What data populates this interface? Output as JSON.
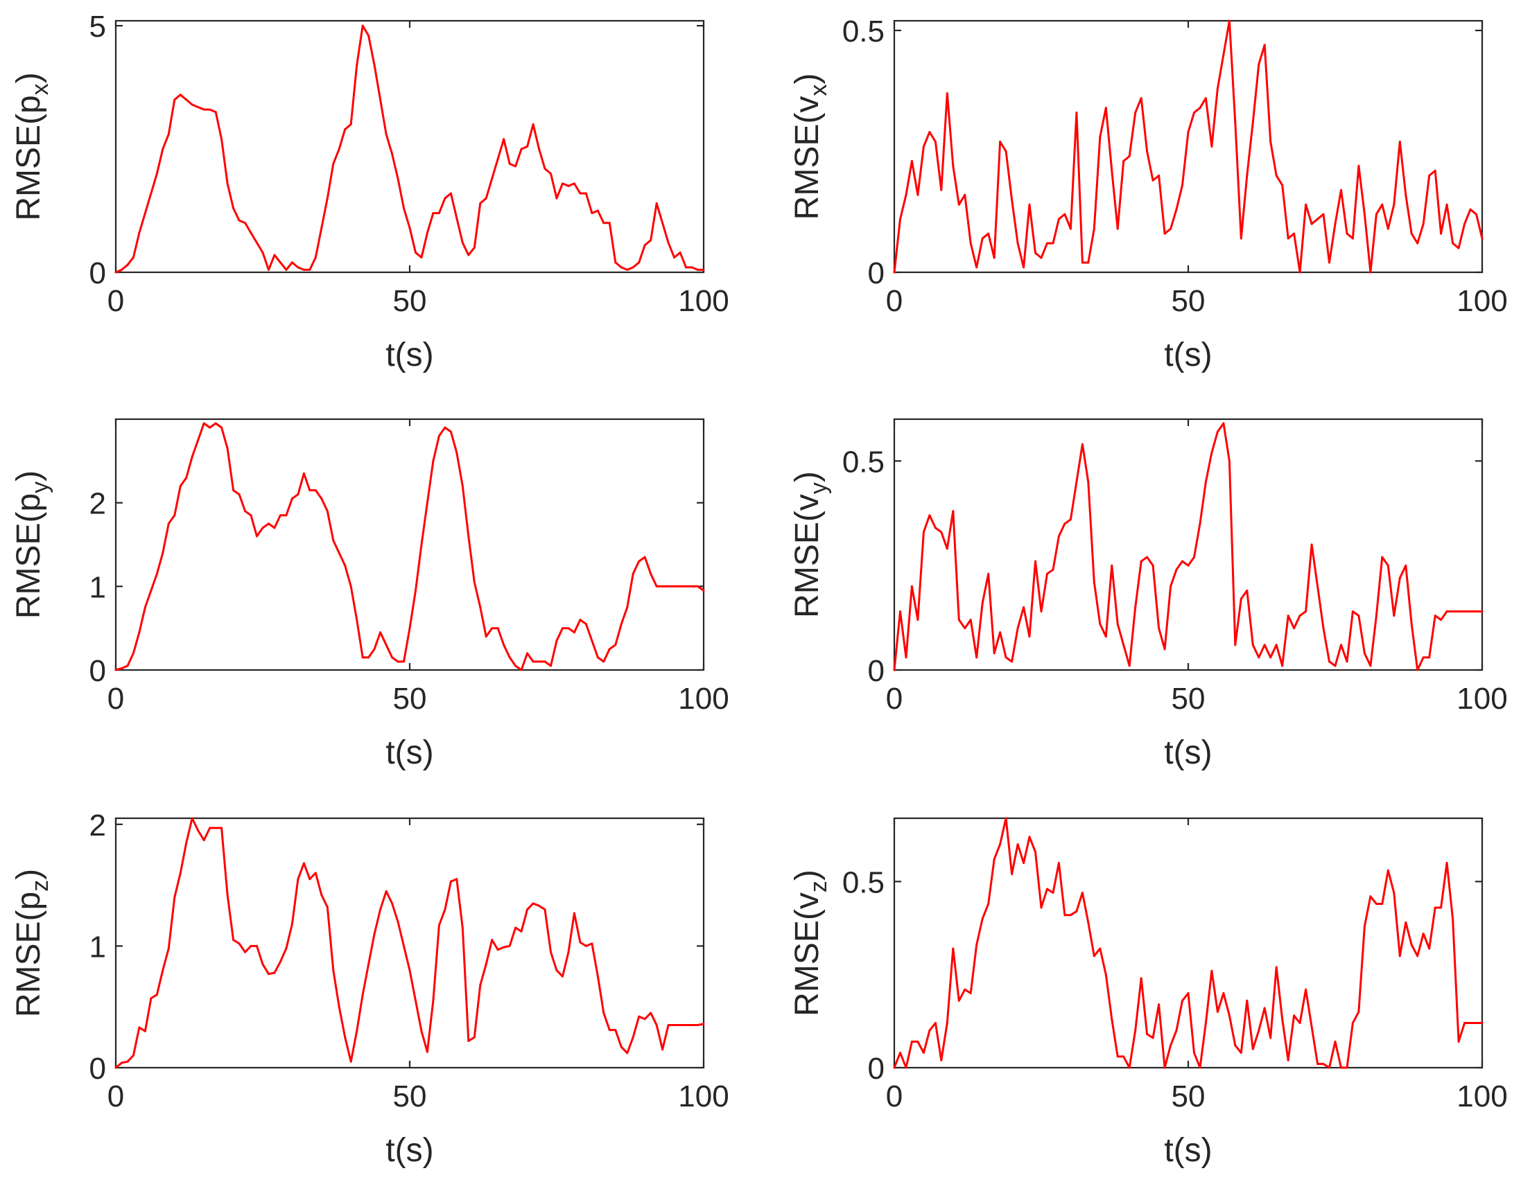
{
  "colors": {
    "line": "#ff0000",
    "axis": "#262626"
  },
  "chart_data": [
    {
      "type": "line",
      "ylabel_main": "RMSE(p",
      "ylabel_sub": "x",
      "xlabel": "t(s)",
      "xlim": [
        0,
        100
      ],
      "ylim": [
        0,
        5.1
      ],
      "xticks": [
        0,
        50,
        100
      ],
      "yticks": [
        0,
        5
      ],
      "grid": false,
      "x": [
        0,
        1,
        2,
        3,
        4,
        5,
        6,
        7,
        8,
        9,
        10,
        11,
        12,
        13,
        14,
        15,
        16,
        17,
        18,
        19,
        20,
        21,
        22,
        23,
        24,
        25,
        26,
        27,
        28,
        29,
        30,
        31,
        32,
        33,
        34,
        35,
        36,
        37,
        38,
        39,
        40,
        41,
        42,
        43,
        44,
        45,
        46,
        47,
        48,
        49,
        50,
        51,
        52,
        53,
        54,
        55,
        56,
        57,
        58,
        59,
        60,
        61,
        62,
        63,
        64,
        65,
        66,
        67,
        68,
        69,
        70,
        71,
        72,
        73,
        74,
        75,
        76,
        77,
        78,
        79,
        80,
        81,
        82,
        83,
        84,
        85,
        86,
        87,
        88,
        89,
        90,
        91,
        92,
        93,
        94,
        95,
        96,
        97,
        98,
        99,
        100
      ],
      "values": [
        0.0,
        0.05,
        0.15,
        0.3,
        0.8,
        1.2,
        1.6,
        2.0,
        2.5,
        2.8,
        3.5,
        3.6,
        3.5,
        3.4,
        3.35,
        3.3,
        3.3,
        3.25,
        2.7,
        1.8,
        1.3,
        1.05,
        1.0,
        0.8,
        0.6,
        0.4,
        0.05,
        0.35,
        0.2,
        0.05,
        0.2,
        0.1,
        0.05,
        0.05,
        0.3,
        0.9,
        1.5,
        2.2,
        2.5,
        2.9,
        3.0,
        4.2,
        5.0,
        4.8,
        4.2,
        3.5,
        2.8,
        2.4,
        1.9,
        1.3,
        0.9,
        0.4,
        0.3,
        0.8,
        1.2,
        1.2,
        1.5,
        1.6,
        1.1,
        0.6,
        0.35,
        0.5,
        1.4,
        1.5,
        1.9,
        2.3,
        2.7,
        2.2,
        2.15,
        2.5,
        2.55,
        3.0,
        2.5,
        2.1,
        2.0,
        1.5,
        1.8,
        1.75,
        1.8,
        1.6,
        1.6,
        1.2,
        1.25,
        1.0,
        1.0,
        0.2,
        0.1,
        0.05,
        0.1,
        0.2,
        0.55,
        0.65,
        1.4,
        1.0,
        0.6,
        0.3,
        0.4,
        0.1,
        0.1,
        0.05,
        0.05
      ],
      "series_name": "RMSE(px)"
    },
    {
      "type": "line",
      "ylabel_main": "RMSE(v",
      "ylabel_sub": "x",
      "xlabel": "t(s)",
      "xlim": [
        0,
        100
      ],
      "ylim": [
        0,
        0.52
      ],
      "xticks": [
        0,
        50,
        100
      ],
      "yticks": [
        0,
        0.5
      ],
      "grid": false,
      "x": [
        0,
        1,
        2,
        3,
        4,
        5,
        6,
        7,
        8,
        9,
        10,
        11,
        12,
        13,
        14,
        15,
        16,
        17,
        18,
        19,
        20,
        21,
        22,
        23,
        24,
        25,
        26,
        27,
        28,
        29,
        30,
        31,
        32,
        33,
        34,
        35,
        36,
        37,
        38,
        39,
        40,
        41,
        42,
        43,
        44,
        45,
        46,
        47,
        48,
        49,
        50,
        51,
        52,
        53,
        54,
        55,
        56,
        57,
        58,
        59,
        60,
        61,
        62,
        63,
        64,
        65,
        66,
        67,
        68,
        69,
        70,
        71,
        72,
        73,
        74,
        75,
        76,
        77,
        78,
        79,
        80,
        81,
        82,
        83,
        84,
        85,
        86,
        87,
        88,
        89,
        90,
        91,
        92,
        93,
        94,
        95,
        96,
        97,
        98,
        99,
        100
      ],
      "values": [
        0.0,
        0.11,
        0.16,
        0.23,
        0.16,
        0.26,
        0.29,
        0.27,
        0.17,
        0.37,
        0.22,
        0.14,
        0.16,
        0.06,
        0.01,
        0.07,
        0.08,
        0.03,
        0.27,
        0.25,
        0.15,
        0.06,
        0.01,
        0.14,
        0.04,
        0.03,
        0.06,
        0.06,
        0.11,
        0.12,
        0.09,
        0.33,
        0.02,
        0.02,
        0.09,
        0.28,
        0.34,
        0.21,
        0.09,
        0.23,
        0.24,
        0.33,
        0.36,
        0.25,
        0.19,
        0.2,
        0.08,
        0.09,
        0.13,
        0.18,
        0.29,
        0.33,
        0.34,
        0.36,
        0.26,
        0.38,
        0.45,
        0.52,
        0.31,
        0.07,
        0.2,
        0.31,
        0.43,
        0.47,
        0.27,
        0.2,
        0.18,
        0.07,
        0.08,
        0.0,
        0.14,
        0.1,
        0.11,
        0.12,
        0.02,
        0.1,
        0.17,
        0.08,
        0.07,
        0.22,
        0.12,
        0.0,
        0.12,
        0.14,
        0.09,
        0.14,
        0.27,
        0.16,
        0.08,
        0.06,
        0.1,
        0.2,
        0.21,
        0.08,
        0.14,
        0.06,
        0.05,
        0.1,
        0.13,
        0.12,
        0.07
      ],
      "series_name": "RMSE(vx)"
    },
    {
      "type": "line",
      "ylabel_main": "RMSE(p",
      "ylabel_sub": "y",
      "xlabel": "t(s)",
      "xlim": [
        0,
        100
      ],
      "ylim": [
        0,
        3.0
      ],
      "xticks": [
        0,
        50,
        100
      ],
      "yticks": [
        0,
        1,
        2
      ],
      "grid": false,
      "x": [
        0,
        1,
        2,
        3,
        4,
        5,
        6,
        7,
        8,
        9,
        10,
        11,
        12,
        13,
        14,
        15,
        16,
        17,
        18,
        19,
        20,
        21,
        22,
        23,
        24,
        25,
        26,
        27,
        28,
        29,
        30,
        31,
        32,
        33,
        34,
        35,
        36,
        37,
        38,
        39,
        40,
        41,
        42,
        43,
        44,
        45,
        46,
        47,
        48,
        49,
        50,
        51,
        52,
        53,
        54,
        55,
        56,
        57,
        58,
        59,
        60,
        61,
        62,
        63,
        64,
        65,
        66,
        67,
        68,
        69,
        70,
        71,
        72,
        73,
        74,
        75,
        76,
        77,
        78,
        79,
        80,
        81,
        82,
        83,
        84,
        85,
        86,
        87,
        88,
        89,
        90,
        91,
        92,
        93,
        94,
        95,
        96,
        97,
        98,
        99,
        100
      ],
      "values": [
        0.0,
        0.02,
        0.05,
        0.2,
        0.45,
        0.75,
        0.95,
        1.15,
        1.4,
        1.75,
        1.85,
        2.2,
        2.3,
        2.55,
        2.75,
        2.95,
        2.9,
        2.95,
        2.9,
        2.65,
        2.15,
        2.1,
        1.9,
        1.85,
        1.6,
        1.7,
        1.75,
        1.7,
        1.85,
        1.85,
        2.05,
        2.1,
        2.35,
        2.15,
        2.15,
        2.05,
        1.9,
        1.55,
        1.4,
        1.25,
        1.0,
        0.6,
        0.15,
        0.15,
        0.25,
        0.45,
        0.3,
        0.15,
        0.1,
        0.1,
        0.5,
        0.95,
        1.5,
        2.0,
        2.5,
        2.8,
        2.9,
        2.85,
        2.6,
        2.2,
        1.6,
        1.05,
        0.75,
        0.4,
        0.5,
        0.5,
        0.3,
        0.15,
        0.05,
        0.0,
        0.2,
        0.1,
        0.1,
        0.1,
        0.05,
        0.35,
        0.5,
        0.5,
        0.45,
        0.6,
        0.55,
        0.35,
        0.15,
        0.1,
        0.25,
        0.3,
        0.55,
        0.75,
        1.15,
        1.3,
        1.35,
        1.15,
        1.0,
        1.0,
        1.0,
        1.0,
        1.0,
        1.0,
        1.0,
        1.0,
        0.95
      ],
      "series_name": "RMSE(py)"
    },
    {
      "type": "line",
      "ylabel_main": "RMSE(v",
      "ylabel_sub": "y",
      "xlabel": "t(s)",
      "xlim": [
        0,
        100
      ],
      "ylim": [
        0,
        0.6
      ],
      "xticks": [
        0,
        50,
        100
      ],
      "yticks": [
        0,
        0.5
      ],
      "grid": false,
      "x": [
        0,
        1,
        2,
        3,
        4,
        5,
        6,
        7,
        8,
        9,
        10,
        11,
        12,
        13,
        14,
        15,
        16,
        17,
        18,
        19,
        20,
        21,
        22,
        23,
        24,
        25,
        26,
        27,
        28,
        29,
        30,
        31,
        32,
        33,
        34,
        35,
        36,
        37,
        38,
        39,
        40,
        41,
        42,
        43,
        44,
        45,
        46,
        47,
        48,
        49,
        50,
        51,
        52,
        53,
        54,
        55,
        56,
        57,
        58,
        59,
        60,
        61,
        62,
        63,
        64,
        65,
        66,
        67,
        68,
        69,
        70,
        71,
        72,
        73,
        74,
        75,
        76,
        77,
        78,
        79,
        80,
        81,
        82,
        83,
        84,
        85,
        86,
        87,
        88,
        89,
        90,
        91,
        92,
        93,
        94,
        95,
        96,
        97,
        98,
        99,
        100
      ],
      "values": [
        0.0,
        0.14,
        0.03,
        0.2,
        0.12,
        0.33,
        0.37,
        0.34,
        0.33,
        0.29,
        0.38,
        0.12,
        0.1,
        0.12,
        0.03,
        0.16,
        0.23,
        0.04,
        0.09,
        0.03,
        0.02,
        0.1,
        0.15,
        0.08,
        0.26,
        0.14,
        0.23,
        0.24,
        0.32,
        0.35,
        0.36,
        0.45,
        0.54,
        0.45,
        0.21,
        0.11,
        0.08,
        0.25,
        0.11,
        0.06,
        0.01,
        0.15,
        0.26,
        0.27,
        0.25,
        0.1,
        0.05,
        0.2,
        0.24,
        0.26,
        0.25,
        0.27,
        0.35,
        0.45,
        0.52,
        0.57,
        0.59,
        0.5,
        0.06,
        0.17,
        0.19,
        0.06,
        0.03,
        0.06,
        0.03,
        0.06,
        0.01,
        0.13,
        0.1,
        0.13,
        0.14,
        0.3,
        0.2,
        0.1,
        0.02,
        0.01,
        0.06,
        0.02,
        0.14,
        0.13,
        0.04,
        0.01,
        0.13,
        0.27,
        0.25,
        0.13,
        0.22,
        0.25,
        0.11,
        0.0,
        0.03,
        0.03,
        0.13,
        0.12,
        0.14,
        0.14,
        0.14,
        0.14,
        0.14,
        0.14,
        0.14
      ],
      "series_name": "RMSE(vy)"
    },
    {
      "type": "line",
      "ylabel_main": "RMSE(p",
      "ylabel_sub": "z",
      "xlabel": "t(s)",
      "xlim": [
        0,
        100
      ],
      "ylim": [
        0,
        2.05
      ],
      "xticks": [
        0,
        50,
        100
      ],
      "yticks": [
        0,
        1,
        2
      ],
      "grid": false,
      "x": [
        0,
        1,
        2,
        3,
        4,
        5,
        6,
        7,
        8,
        9,
        10,
        11,
        12,
        13,
        14,
        15,
        16,
        17,
        18,
        19,
        20,
        21,
        22,
        23,
        24,
        25,
        26,
        27,
        28,
        29,
        30,
        31,
        32,
        33,
        34,
        35,
        36,
        37,
        38,
        39,
        40,
        41,
        42,
        43,
        44,
        45,
        46,
        47,
        48,
        49,
        50,
        51,
        52,
        53,
        54,
        55,
        56,
        57,
        58,
        59,
        60,
        61,
        62,
        63,
        64,
        65,
        66,
        67,
        68,
        69,
        70,
        71,
        72,
        73,
        74,
        75,
        76,
        77,
        78,
        79,
        80,
        81,
        82,
        83,
        84,
        85,
        86,
        87,
        88,
        89,
        90,
        91,
        92,
        93,
        94,
        95,
        96,
        97,
        98,
        99,
        100
      ],
      "values": [
        0.0,
        0.04,
        0.05,
        0.1,
        0.33,
        0.3,
        0.57,
        0.6,
        0.8,
        0.98,
        1.4,
        1.6,
        1.85,
        2.05,
        1.95,
        1.87,
        1.97,
        1.97,
        1.97,
        1.42,
        1.05,
        1.02,
        0.95,
        1.0,
        1.0,
        0.85,
        0.77,
        0.78,
        0.87,
        0.98,
        1.18,
        1.55,
        1.68,
        1.55,
        1.6,
        1.42,
        1.32,
        0.8,
        0.5,
        0.25,
        0.05,
        0.3,
        0.6,
        0.85,
        1.1,
        1.3,
        1.45,
        1.35,
        1.2,
        1.0,
        0.8,
        0.55,
        0.3,
        0.13,
        0.55,
        1.17,
        1.3,
        1.53,
        1.55,
        1.15,
        0.22,
        0.25,
        0.68,
        0.85,
        1.05,
        0.97,
        0.99,
        1.0,
        1.15,
        1.12,
        1.3,
        1.35,
        1.33,
        1.3,
        0.95,
        0.8,
        0.75,
        0.95,
        1.27,
        1.03,
        1.0,
        1.02,
        0.75,
        0.45,
        0.31,
        0.31,
        0.17,
        0.12,
        0.25,
        0.42,
        0.4,
        0.45,
        0.35,
        0.15,
        0.35,
        0.35,
        0.35,
        0.35,
        0.35,
        0.35,
        0.36
      ],
      "series_name": "RMSE(pz)"
    },
    {
      "type": "line",
      "ylabel_main": "RMSE(v",
      "ylabel_sub": "z",
      "xlabel": "t(s)",
      "xlim": [
        0,
        100
      ],
      "ylim": [
        0,
        0.67
      ],
      "xticks": [
        0,
        50,
        100
      ],
      "yticks": [
        0,
        0.5
      ],
      "grid": false,
      "x": [
        0,
        1,
        2,
        3,
        4,
        5,
        6,
        7,
        8,
        9,
        10,
        11,
        12,
        13,
        14,
        15,
        16,
        17,
        18,
        19,
        20,
        21,
        22,
        23,
        24,
        25,
        26,
        27,
        28,
        29,
        30,
        31,
        32,
        33,
        34,
        35,
        36,
        37,
        38,
        39,
        40,
        41,
        42,
        43,
        44,
        45,
        46,
        47,
        48,
        49,
        50,
        51,
        52,
        53,
        54,
        55,
        56,
        57,
        58,
        59,
        60,
        61,
        62,
        63,
        64,
        65,
        66,
        67,
        68,
        69,
        70,
        71,
        72,
        73,
        74,
        75,
        76,
        77,
        78,
        79,
        80,
        81,
        82,
        83,
        84,
        85,
        86,
        87,
        88,
        89,
        90,
        91,
        92,
        93,
        94,
        95,
        96,
        97,
        98,
        99,
        100
      ],
      "values": [
        0.0,
        0.04,
        0.0,
        0.07,
        0.07,
        0.04,
        0.1,
        0.12,
        0.02,
        0.12,
        0.32,
        0.18,
        0.21,
        0.2,
        0.33,
        0.4,
        0.44,
        0.56,
        0.6,
        0.67,
        0.52,
        0.6,
        0.55,
        0.62,
        0.58,
        0.43,
        0.48,
        0.47,
        0.55,
        0.41,
        0.41,
        0.42,
        0.47,
        0.39,
        0.3,
        0.32,
        0.25,
        0.13,
        0.03,
        0.03,
        0.0,
        0.1,
        0.24,
        0.09,
        0.08,
        0.17,
        0.0,
        0.06,
        0.1,
        0.18,
        0.2,
        0.04,
        0.0,
        0.12,
        0.26,
        0.15,
        0.2,
        0.14,
        0.06,
        0.04,
        0.18,
        0.05,
        0.1,
        0.16,
        0.08,
        0.27,
        0.13,
        0.02,
        0.14,
        0.12,
        0.21,
        0.11,
        0.01,
        0.01,
        0.0,
        0.07,
        0.0,
        0.0,
        0.12,
        0.15,
        0.38,
        0.46,
        0.44,
        0.44,
        0.53,
        0.47,
        0.3,
        0.39,
        0.33,
        0.3,
        0.36,
        0.32,
        0.43,
        0.43,
        0.55,
        0.4,
        0.07,
        0.12,
        0.12,
        0.12,
        0.12
      ],
      "series_name": "RMSE(vz)"
    }
  ]
}
